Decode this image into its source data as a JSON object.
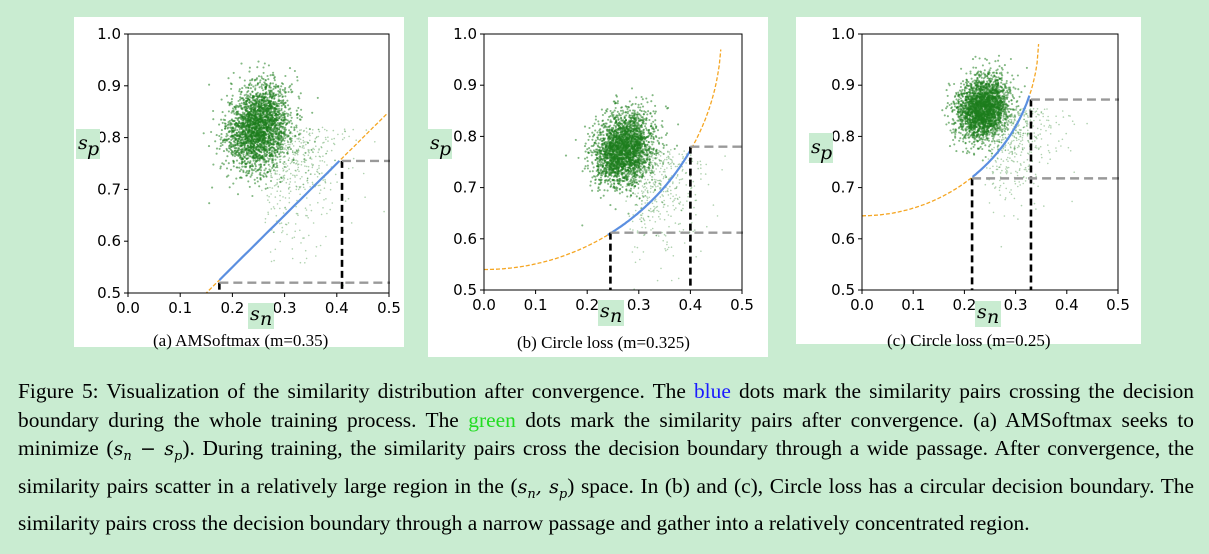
{
  "chart_data": [
    {
      "type": "scatter",
      "panel": "a",
      "caption": "(a) AMSoftmax (m=0.35)",
      "xlabel": "s_n",
      "ylabel": "s_p",
      "xlim": [
        0.0,
        0.5
      ],
      "ylim": [
        0.5,
        1.0
      ],
      "xticks": [
        "0.0",
        "0.1",
        "0.2",
        "0.3",
        "0.4",
        "0.5"
      ],
      "yticks": [
        "0.5",
        "0.6",
        "0.7",
        "0.8",
        "0.9",
        "1.0"
      ],
      "boundary": {
        "kind": "linear",
        "margin": 0.35,
        "color": "#f5a623"
      },
      "cluster": {
        "center": [
          0.25,
          0.82
        ],
        "spread": [
          0.03,
          0.04
        ],
        "color": "#1e7d1e"
      },
      "blue_passage": [
        [
          0.175,
          0.525
        ],
        [
          0.41,
          0.76
        ]
      ],
      "markers": {
        "x_low": 0.175,
        "x_high": 0.41,
        "y_low": 0.52,
        "y_high": 0.755
      }
    },
    {
      "type": "scatter",
      "panel": "b",
      "caption": "(b) Circle loss  (m=0.325)",
      "xlabel": "s_n",
      "ylabel": "s_p",
      "xlim": [
        0.0,
        0.5
      ],
      "ylim": [
        0.5,
        1.0
      ],
      "xticks": [
        "0.0",
        "0.1",
        "0.2",
        "0.3",
        "0.4",
        "0.5"
      ],
      "yticks": [
        "0.5",
        "0.6",
        "0.7",
        "0.8",
        "0.9",
        "1.0"
      ],
      "boundary": {
        "kind": "circle",
        "margin": 0.325,
        "color": "#f5a623"
      },
      "cluster": {
        "center": [
          0.27,
          0.775
        ],
        "spread": [
          0.028,
          0.035
        ],
        "color": "#1e7d1e"
      },
      "blue_passage": [
        [
          0.24,
          0.61
        ],
        [
          0.4,
          0.78
        ]
      ],
      "markers": {
        "x_low": 0.245,
        "x_high": 0.4,
        "y_low": 0.612,
        "y_high": 0.78
      }
    },
    {
      "type": "scatter",
      "panel": "c",
      "caption": "(c) Circle loss  (m=0.25)",
      "xlabel": "s_n",
      "ylabel": "s_p",
      "xlim": [
        0.0,
        0.5
      ],
      "ylim": [
        0.5,
        1.0
      ],
      "xticks": [
        "0.0",
        "0.1",
        "0.2",
        "0.3",
        "0.4",
        "0.5"
      ],
      "yticks": [
        "0.5",
        "0.6",
        "0.7",
        "0.8",
        "0.9",
        "1.0"
      ],
      "boundary": {
        "kind": "circle",
        "margin": 0.25,
        "color": "#f5a623"
      },
      "cluster": {
        "center": [
          0.235,
          0.855
        ],
        "spread": [
          0.025,
          0.03
        ],
        "color": "#1e7d1e"
      },
      "blue_passage": [
        [
          0.215,
          0.715
        ],
        [
          0.33,
          0.875
        ]
      ],
      "markers": {
        "x_low": 0.215,
        "x_high": 0.33,
        "y_low": 0.718,
        "y_high": 0.872
      }
    }
  ],
  "caption": {
    "part1": "Figure 5: Visualization of the similarity distribution after convergence.  The ",
    "blue_word": "blue",
    "part2": " dots mark the similarity pairs crossing the decision boundary during the whole training process. The ",
    "green_word": "green",
    "part3": " dots mark the similarity pairs after convergence. (a) AMSoftmax seeks to minimize (",
    "math1": "s",
    "part4": "). During training, the similarity pairs cross the decision boundary through a wide passage. After convergence, the similarity pairs scatter in a relatively large region in the (",
    "part5": ") space. In (b) and (c), Circle loss has a circular decision boundary. The similarity pairs cross the decision boundary through a narrow passage and gather into a relatively concentrated region."
  },
  "colors": {
    "blue_text": "#1a1aff",
    "green_text": "#22dd22",
    "boundary": "#f5a623",
    "passage": "#5b8fe0",
    "scatter": "#1e7d1e"
  }
}
